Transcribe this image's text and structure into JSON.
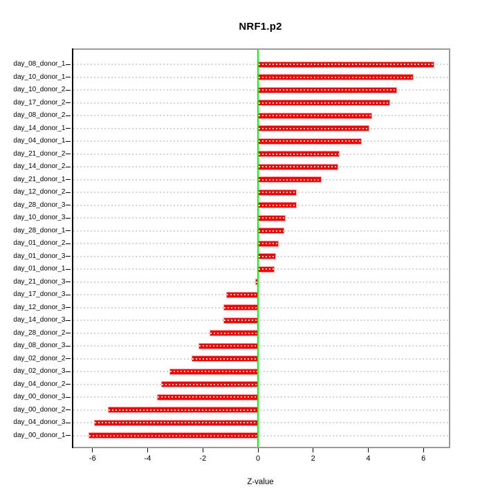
{
  "chart_data": {
    "type": "bar",
    "orientation": "horizontal",
    "title": "NRF1.p2",
    "xlabel": "Z-value",
    "ylabel": "",
    "legend": "none",
    "grid": "dotted-horizontal",
    "xlim": [
      -6.71,
      6.91
    ],
    "xticks": [
      -6,
      -4,
      -2,
      0,
      2,
      4,
      6
    ],
    "xtick_labels": [
      "-6",
      "-4",
      "-2",
      "0",
      "2",
      "4",
      "6"
    ],
    "zero_reference_line": 0,
    "categories": [
      "day_08_donor_1",
      "day_10_donor_1",
      "day_10_donor_2",
      "day_17_donor_2",
      "day_08_donor_2",
      "day_14_donor_1",
      "day_04_donor_1",
      "day_21_donor_2",
      "day_14_donor_2",
      "day_21_donor_1",
      "day_12_donor_2",
      "day_28_donor_3",
      "day_10_donor_3",
      "day_28_donor_1",
      "day_01_donor_2",
      "day_01_donor_3",
      "day_01_donor_1",
      "day_21_donor_3",
      "day_17_donor_3",
      "day_12_donor_3",
      "day_14_donor_3",
      "day_28_donor_2",
      "day_08_donor_3",
      "day_02_donor_2",
      "day_02_donor_3",
      "day_04_donor_2",
      "day_00_donor_3",
      "day_00_donor_2",
      "day_04_donor_3",
      "day_00_donor_1"
    ],
    "values": [
      6.4,
      5.65,
      5.05,
      4.8,
      4.15,
      4.05,
      3.75,
      2.95,
      2.9,
      2.3,
      1.4,
      1.4,
      1.0,
      0.95,
      0.75,
      0.65,
      0.6,
      -0.1,
      -1.15,
      -1.25,
      -1.25,
      -1.75,
      -2.15,
      -2.4,
      -3.2,
      -3.5,
      -3.65,
      -5.45,
      -5.95,
      -6.15
    ],
    "colors": {
      "bar_fill": "#FE0000",
      "bar_border": "#FF9E9E",
      "bar_dash": "#FFFFFF",
      "zero_line": "#00FF00",
      "gridline": "#D4D4D4",
      "frame": "#9A9A9A",
      "axis": "#000000",
      "background": "#FFFFFF"
    }
  }
}
